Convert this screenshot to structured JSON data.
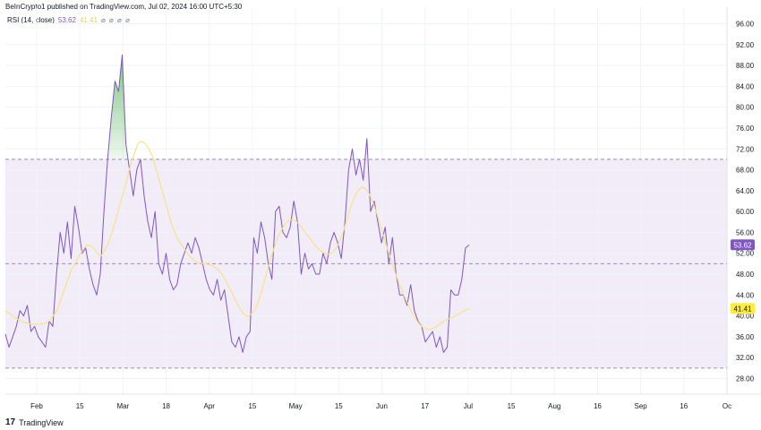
{
  "header": {
    "published": "BeInCrypto1 published on TradingView.com, Jul 02, 2024 16:00 UTC+5:30"
  },
  "legend": {
    "name": "RSI (14, close)",
    "rsi_value": "53.62",
    "ma_value": "41.41",
    "controls": "⌀ ⌀ ⌀ ⌀"
  },
  "footer": {
    "logo": "17",
    "brand": "TradingView"
  },
  "colors": {
    "rsi": "#7e57c2",
    "ma": "#f7e28a",
    "band": "#ede7f6",
    "overbought_fill": "#66bb6a",
    "badge_rsi": "#7e57c2",
    "badge_ma": "#ffeb3b"
  },
  "chart_data": {
    "type": "line",
    "xlabel": "",
    "ylabel": "",
    "y_ticks": [
      "96.00",
      "92.00",
      "88.00",
      "84.00",
      "80.00",
      "76.00",
      "72.00",
      "68.00",
      "64.00",
      "60.00",
      "56.00",
      "52.00",
      "48.00",
      "44.00",
      "40.00",
      "36.00",
      "32.00",
      "28.00"
    ],
    "x_ticks": [
      "Feb",
      "15",
      "Mar",
      "18",
      "Apr",
      "15",
      "May",
      "15",
      "Jun",
      "17",
      "Jul",
      "15",
      "Aug",
      "16",
      "Sep",
      "16",
      "Oc"
    ],
    "ylim": [
      25.6,
      97.6
    ],
    "bands": {
      "upper": 70,
      "middle": 50,
      "lower": 30
    },
    "last_values": {
      "rsi": "53.62",
      "ma": "41.41"
    },
    "series": [
      {
        "key": "rsi",
        "values": [
          36.5,
          34,
          36,
          38,
          41,
          40,
          42,
          37,
          38,
          36,
          35,
          34,
          39,
          38,
          48,
          56,
          52,
          58,
          51,
          61,
          57,
          52,
          53,
          49,
          46,
          44,
          48,
          60,
          70,
          78,
          85,
          83,
          90,
          73,
          68,
          63,
          68,
          70,
          63,
          58,
          55,
          60,
          50,
          48,
          52,
          47,
          45,
          46,
          50,
          52,
          54,
          52,
          55,
          53,
          50,
          47,
          45,
          44,
          47,
          43,
          45,
          40,
          35,
          34,
          36,
          33,
          36,
          37,
          55,
          52,
          58,
          55,
          50,
          47,
          60,
          61,
          56,
          55,
          57,
          62,
          58,
          48,
          52,
          49,
          50,
          48,
          48,
          52,
          50,
          54,
          56,
          54,
          51,
          58,
          68,
          72,
          67,
          70,
          66,
          74,
          60,
          62,
          58,
          54,
          57,
          50,
          55,
          48,
          44,
          44,
          42,
          46,
          41,
          39,
          38,
          35,
          36,
          37,
          34,
          36,
          33,
          34,
          45,
          44,
          44,
          47,
          53,
          53.62
        ]
      },
      {
        "key": "ma",
        "values": [
          41,
          40.5,
          40,
          39.5,
          39,
          38.8,
          38.6,
          38.4,
          38.4,
          38.4,
          38.5,
          38.6,
          39,
          40,
          41,
          43,
          45,
          47,
          49,
          50,
          51.5,
          52.5,
          53.5,
          53.5,
          53,
          52,
          51.5,
          52.5,
          54,
          56,
          58.5,
          61,
          63.5,
          66,
          69,
          71,
          73,
          73.5,
          73,
          72,
          70.5,
          68,
          65.5,
          63,
          60.5,
          58,
          56,
          54.5,
          53.5,
          52.5,
          51.5,
          50.8,
          50.3,
          50.1,
          50,
          49.9,
          49.7,
          49.3,
          48.7,
          47.8,
          46.6,
          45.2,
          43.8,
          42.3,
          41.1,
          40.2,
          39.9,
          40.5,
          41.5,
          43.3,
          45.7,
          48.2,
          50.7,
          53,
          55,
          56.4,
          57.6,
          58.3,
          58.5,
          58.1,
          57.4,
          56.5,
          55.5,
          54.6,
          53.7,
          52.9,
          52.3,
          51.9,
          51.8,
          52.2,
          53.1,
          54.5,
          56.6,
          59,
          61.2,
          63,
          64.2,
          64.7,
          64.3,
          63.2,
          61.5,
          59.4,
          57.1,
          54.7,
          52.4,
          50.2,
          48.1,
          46.2,
          44.4,
          42.8,
          41.3,
          40,
          38.9,
          38,
          37.6,
          37.4,
          37.5,
          37.9,
          38.4,
          38.9,
          39.3,
          39.6,
          39.9,
          40.3,
          40.7,
          41.1,
          41.41
        ]
      }
    ]
  }
}
